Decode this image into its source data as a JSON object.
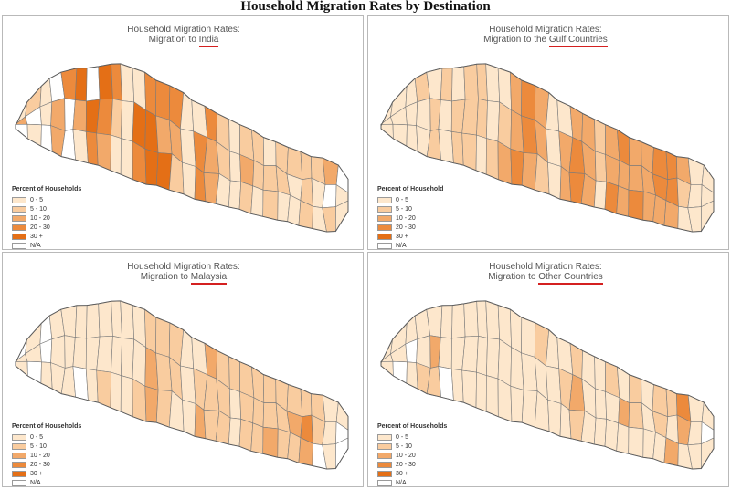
{
  "title": "Household Migration Rates by Destination",
  "colors": {
    "class_0": "#fde7cc",
    "class_1": "#f9cc9f",
    "class_2": "#f2a96a",
    "class_3": "#ec8a3c",
    "class_4": "#e46f16",
    "na": "#ffffff",
    "title_underline": "#d42020"
  },
  "legend_classes": [
    "0 - 5",
    "5 - 10",
    "10 - 20",
    "20 - 30",
    "30 +",
    "N/A"
  ],
  "panels": [
    {
      "title_line1": "Household Migration Rates:",
      "title_prefix": "Migration to ",
      "destination": "India",
      "legend_title": "Percent of Households",
      "district_classes": [
        0,
        2,
        5,
        1,
        5,
        0,
        0,
        0,
        5,
        5,
        2,
        2,
        3,
        5,
        5,
        4,
        2,
        0,
        5,
        4,
        3,
        4,
        3,
        2,
        3,
        1,
        0,
        0,
        0,
        0,
        0,
        4,
        3,
        3,
        4,
        4,
        3,
        2,
        4,
        3,
        2,
        1,
        0,
        0,
        0,
        0,
        3,
        3,
        3,
        2,
        2,
        1,
        1,
        0,
        0,
        0,
        0,
        1,
        2,
        1,
        1,
        1,
        0,
        0,
        1,
        1,
        1,
        1,
        0,
        1,
        0,
        0,
        1,
        1,
        1,
        1,
        0
      ]
    },
    {
      "title_line1": "Household Migration Rates:",
      "title_prefix": "Migration to the ",
      "destination": "Gulf Countries",
      "legend_title": "Percent of Household",
      "district_classes": [
        0,
        0,
        0,
        0,
        0,
        0,
        0,
        0,
        0,
        1,
        0,
        0,
        0,
        1,
        1,
        1,
        0,
        0,
        0,
        1,
        1,
        1,
        1,
        1,
        1,
        1,
        0,
        0,
        0,
        1,
        0,
        1,
        2,
        2,
        2,
        3,
        3,
        3,
        2,
        2,
        2,
        1,
        0,
        0,
        0,
        0,
        2,
        2,
        2,
        3,
        3,
        2,
        2,
        2,
        1,
        1,
        0,
        2,
        2,
        3,
        3,
        2,
        2,
        2,
        2,
        3,
        2,
        2,
        2,
        3,
        3,
        2,
        3,
        3,
        2,
        2,
        1
      ]
    },
    {
      "title_line1": "Household Migration Rates:",
      "title_prefix": "Migration to ",
      "destination": "Malaysia",
      "legend_title": "Percent of Households",
      "district_classes": [
        5,
        0,
        0,
        0,
        0,
        5,
        5,
        5,
        0,
        0,
        0,
        0,
        0,
        0,
        0,
        0,
        0,
        5,
        0,
        0,
        0,
        0,
        0,
        1,
        0,
        0,
        0,
        0,
        0,
        0,
        0,
        0,
        1,
        1,
        2,
        2,
        1,
        1,
        1,
        1,
        1,
        0,
        0,
        0,
        0,
        0,
        1,
        2,
        2,
        1,
        1,
        1,
        1,
        1,
        1,
        0,
        0,
        1,
        1,
        1,
        1,
        1,
        1,
        1,
        1,
        2,
        1,
        1,
        1,
        1,
        2,
        1,
        1,
        3,
        2,
        1,
        1
      ]
    },
    {
      "title_line1": "Household Migration Rates:",
      "title_prefix": "Migration to ",
      "destination": "Other Countries",
      "legend_title": "Percent of Households",
      "district_classes": [
        0,
        0,
        0,
        0,
        0,
        5,
        0,
        5,
        0,
        0,
        0,
        1,
        0,
        2,
        1,
        0,
        0,
        5,
        0,
        0,
        0,
        0,
        0,
        0,
        0,
        0,
        0,
        0,
        0,
        0,
        0,
        0,
        0,
        0,
        0,
        0,
        0,
        0,
        0,
        1,
        0,
        0,
        0,
        0,
        0,
        0,
        1,
        0,
        1,
        2,
        1,
        0,
        0,
        0,
        0,
        0,
        0,
        1,
        0,
        0,
        0,
        2,
        0,
        1,
        1,
        0,
        0,
        0,
        0,
        1,
        1,
        0,
        1,
        0,
        2,
        3,
        2
      ]
    }
  ]
}
